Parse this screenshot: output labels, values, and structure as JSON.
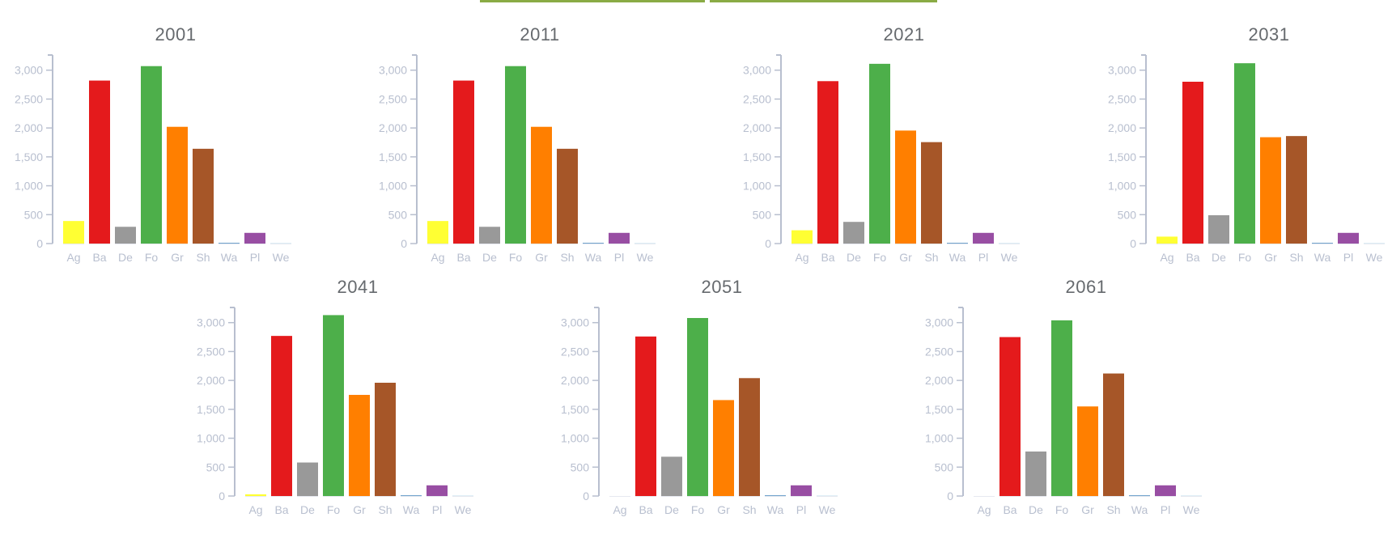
{
  "header": {
    "tabs": [
      {
        "label": ""
      },
      {
        "label": ""
      }
    ],
    "tab_color": "#8aab45"
  },
  "chart_data": [
    {
      "type": "bar",
      "title": "2001",
      "categories": [
        "Ag",
        "Ba",
        "De",
        "Fo",
        "Gr",
        "Sh",
        "Wa",
        "Pl",
        "We"
      ],
      "values": [
        390,
        2820,
        290,
        3070,
        2020,
        1640,
        10,
        185,
        5
      ],
      "ylim": [
        0,
        3150
      ],
      "yticks": [
        "0",
        "500",
        "1,000",
        "1,500",
        "2,000",
        "2,500",
        "3,000"
      ],
      "xlabel": "",
      "ylabel": ""
    },
    {
      "type": "bar",
      "title": "2011",
      "categories": [
        "Ag",
        "Ba",
        "De",
        "Fo",
        "Gr",
        "Sh",
        "Wa",
        "Pl",
        "We"
      ],
      "values": [
        390,
        2820,
        290,
        3070,
        2020,
        1640,
        10,
        185,
        5
      ],
      "ylim": [
        0,
        3150
      ],
      "yticks": [
        "0",
        "500",
        "1,000",
        "1,500",
        "2,000",
        "2,500",
        "3,000"
      ],
      "xlabel": "",
      "ylabel": ""
    },
    {
      "type": "bar",
      "title": "2021",
      "categories": [
        "Ag",
        "Ba",
        "De",
        "Fo",
        "Gr",
        "Sh",
        "Wa",
        "Pl",
        "We"
      ],
      "values": [
        230,
        2810,
        375,
        3110,
        1955,
        1755,
        10,
        185,
        5
      ],
      "ylim": [
        0,
        3150
      ],
      "yticks": [
        "0",
        "500",
        "1,000",
        "1,500",
        "2,000",
        "2,500",
        "3,000"
      ],
      "xlabel": "",
      "ylabel": ""
    },
    {
      "type": "bar",
      "title": "2031",
      "categories": [
        "Ag",
        "Ba",
        "De",
        "Fo",
        "Gr",
        "Sh",
        "Wa",
        "Pl",
        "We"
      ],
      "values": [
        120,
        2800,
        490,
        3120,
        1840,
        1860,
        10,
        185,
        5
      ],
      "ylim": [
        0,
        3150
      ],
      "yticks": [
        "0",
        "500",
        "1,000",
        "1,500",
        "2,000",
        "2,500",
        "3,000"
      ],
      "xlabel": "",
      "ylabel": ""
    },
    {
      "type": "bar",
      "title": "2041",
      "categories": [
        "Ag",
        "Ba",
        "De",
        "Fo",
        "Gr",
        "Sh",
        "Wa",
        "Pl",
        "We"
      ],
      "values": [
        30,
        2770,
        580,
        3130,
        1750,
        1960,
        10,
        185,
        5
      ],
      "ylim": [
        0,
        3150
      ],
      "yticks": [
        "0",
        "500",
        "1,000",
        "1,500",
        "2,000",
        "2,500",
        "3,000"
      ],
      "xlabel": "",
      "ylabel": ""
    },
    {
      "type": "bar",
      "title": "2051",
      "categories": [
        "Ag",
        "Ba",
        "De",
        "Fo",
        "Gr",
        "Sh",
        "Wa",
        "Pl",
        "We"
      ],
      "values": [
        0,
        2760,
        680,
        3080,
        1660,
        2040,
        10,
        185,
        5
      ],
      "ylim": [
        0,
        3150
      ],
      "yticks": [
        "0",
        "500",
        "1,000",
        "1,500",
        "2,000",
        "2,500",
        "3,000"
      ],
      "xlabel": "",
      "ylabel": ""
    },
    {
      "type": "bar",
      "title": "2061",
      "categories": [
        "Ag",
        "Ba",
        "De",
        "Fo",
        "Gr",
        "Sh",
        "Wa",
        "Pl",
        "We"
      ],
      "values": [
        0,
        2750,
        770,
        3040,
        1550,
        2120,
        10,
        185,
        5
      ],
      "ylim": [
        0,
        3150
      ],
      "yticks": [
        "0",
        "500",
        "1,000",
        "1,500",
        "2,000",
        "2,500",
        "3,000"
      ],
      "xlabel": "",
      "ylabel": ""
    }
  ],
  "colors": {
    "Ag": "#ffff33",
    "Ba": "#e41a1c",
    "De": "#999999",
    "Fo": "#4daf4a",
    "Gr": "#ff7f00",
    "Sh": "#a65628",
    "Wa": "#377eb8",
    "Pl": "#984ea3",
    "We": "#a6cee3",
    "axis": "#b8bfcf",
    "title": "#666a6e"
  }
}
